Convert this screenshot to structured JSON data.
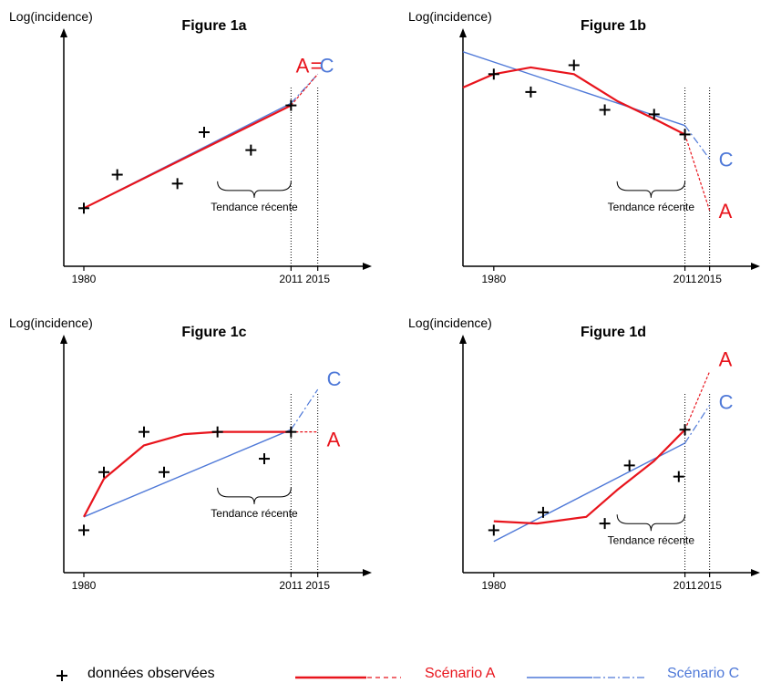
{
  "colors": {
    "scenario_a": "#e8141c",
    "scenario_c": "#4f79d8",
    "axis": "#000000"
  },
  "legend": {
    "observed_label": "données observées",
    "scenario_a_label": "Scénario A",
    "scenario_c_label": "Scénario C"
  },
  "chart_data": [
    {
      "type": "line",
      "title": "Figure 1a",
      "ylabel": "Log(incidence)",
      "x_ticks": [
        1980,
        2011,
        2015
      ],
      "trend_label": "Tendance récente",
      "end_label": "A=C",
      "end_label_a": "A",
      "end_label_eq": "=",
      "end_label_c": "C",
      "observed": [
        [
          1980,
          0.26
        ],
        [
          1985,
          0.41
        ],
        [
          1994,
          0.37
        ],
        [
          1998,
          0.6
        ],
        [
          2005,
          0.52
        ],
        [
          2011,
          0.72
        ]
      ],
      "scenario_a_fit": [
        [
          1980,
          0.26
        ],
        [
          2011,
          0.72
        ]
      ],
      "scenario_a_proj": [
        [
          2011,
          0.72
        ],
        [
          2015,
          0.86
        ]
      ],
      "scenario_c_fit": [
        [
          1980,
          0.26
        ],
        [
          2011,
          0.73
        ]
      ],
      "scenario_c_proj": [
        [
          2011,
          0.73
        ],
        [
          2015,
          0.86
        ]
      ]
    },
    {
      "type": "line",
      "title": "Figure 1b",
      "ylabel": "Log(incidence)",
      "x_ticks": [
        1980,
        2011,
        2015
      ],
      "trend_label": "Tendance récente",
      "end_label_a": "A",
      "end_label_c": "C",
      "observed": [
        [
          1980,
          0.86
        ],
        [
          1986,
          0.78
        ],
        [
          1993,
          0.9
        ],
        [
          1998,
          0.7
        ],
        [
          2006,
          0.68
        ],
        [
          2011,
          0.59
        ]
      ],
      "scenario_a_fit": [
        [
          1975,
          0.8
        ],
        [
          1980,
          0.86
        ],
        [
          1986,
          0.89
        ],
        [
          1993,
          0.86
        ],
        [
          2000,
          0.74
        ],
        [
          2006,
          0.66
        ],
        [
          2011,
          0.59
        ]
      ],
      "scenario_a_proj": [
        [
          2011,
          0.59
        ],
        [
          2015,
          0.25
        ]
      ],
      "scenario_c_fit": [
        [
          1975,
          0.96
        ],
        [
          2011,
          0.63
        ]
      ],
      "scenario_c_proj": [
        [
          2011,
          0.63
        ],
        [
          2015,
          0.48
        ]
      ]
    },
    {
      "type": "line",
      "title": "Figure 1c",
      "ylabel": "Log(incidence)",
      "x_ticks": [
        1980,
        2011,
        2015
      ],
      "trend_label": "Tendance récente",
      "end_label_a": "A",
      "end_label_c": "C",
      "observed": [
        [
          1980,
          0.19
        ],
        [
          1983,
          0.45
        ],
        [
          1989,
          0.63
        ],
        [
          1992,
          0.45
        ],
        [
          2000,
          0.63
        ],
        [
          2007,
          0.51
        ],
        [
          2011,
          0.63
        ]
      ],
      "scenario_a_fit": [
        [
          1980,
          0.25
        ],
        [
          1983,
          0.42
        ],
        [
          1989,
          0.57
        ],
        [
          1995,
          0.62
        ],
        [
          2000,
          0.63
        ],
        [
          2011,
          0.63
        ]
      ],
      "scenario_a_proj": [
        [
          2011,
          0.63
        ],
        [
          2015,
          0.63
        ]
      ],
      "scenario_c_fit": [
        [
          1980,
          0.25
        ],
        [
          2011,
          0.64
        ]
      ],
      "scenario_c_proj": [
        [
          2011,
          0.64
        ],
        [
          2015,
          0.82
        ]
      ]
    },
    {
      "type": "line",
      "title": "Figure 1d",
      "ylabel": "Log(incidence)",
      "x_ticks": [
        1980,
        2011,
        2015
      ],
      "trend_label": "Tendance récente",
      "end_label_a": "A",
      "end_label_c": "C",
      "observed": [
        [
          1980,
          0.19
        ],
        [
          1988,
          0.27
        ],
        [
          1998,
          0.22
        ],
        [
          2002,
          0.48
        ],
        [
          2010,
          0.43
        ],
        [
          2011,
          0.64
        ]
      ],
      "scenario_a_fit": [
        [
          1980,
          0.23
        ],
        [
          1987,
          0.22
        ],
        [
          1995,
          0.25
        ],
        [
          2000,
          0.37
        ],
        [
          2006,
          0.5
        ],
        [
          2011,
          0.64
        ]
      ],
      "scenario_a_proj": [
        [
          2011,
          0.64
        ],
        [
          2015,
          0.9
        ]
      ],
      "scenario_c_fit": [
        [
          1980,
          0.14
        ],
        [
          2011,
          0.58
        ]
      ],
      "scenario_c_proj": [
        [
          2011,
          0.58
        ],
        [
          2015,
          0.75
        ]
      ]
    }
  ]
}
